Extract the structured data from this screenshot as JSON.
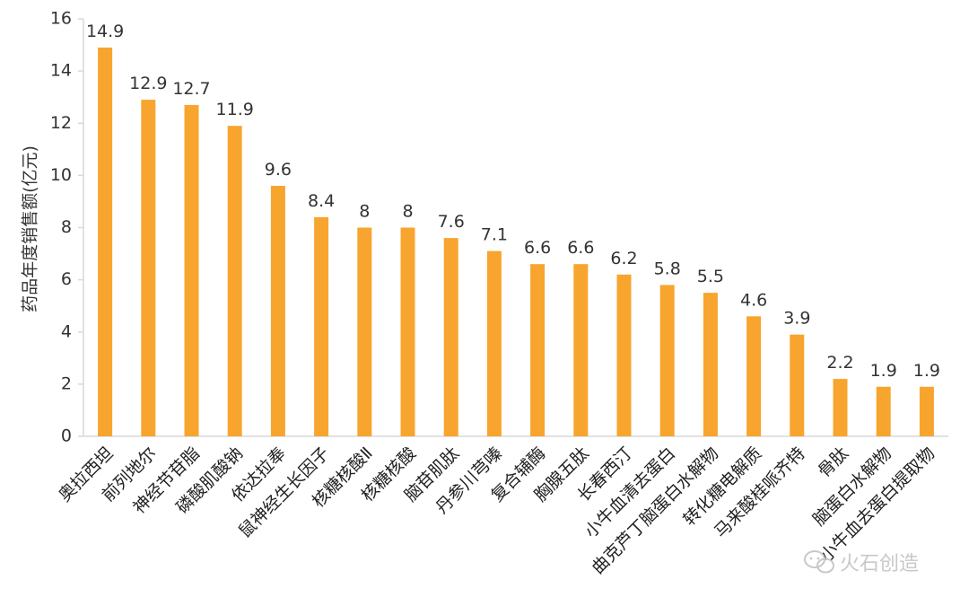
{
  "chart_data": {
    "type": "bar",
    "ylabel": "药品年度销售额(亿元)",
    "ylim": [
      0,
      16
    ],
    "yticks": [
      0,
      2,
      4,
      6,
      8,
      10,
      12,
      14,
      16
    ],
    "categories": [
      "奥拉西坦",
      "前列地尔",
      "神经节苷脂",
      "磷酸肌酸钠",
      "依达拉奉",
      "鼠神经生长因子",
      "核糖核酸Ⅱ",
      "核糖核酸",
      "脑苷肌肽",
      "丹参川芎嗪",
      "复合辅酶",
      "胸腺五肽",
      "长春西汀",
      "小牛血清去蛋白",
      "曲克芦丁脑蛋白水解物",
      "转化糖电解质",
      "马来酸桂哌齐特",
      "骨肽",
      "脑蛋白水解物",
      "小牛血去蛋白提取物"
    ],
    "values": [
      14.9,
      12.9,
      12.7,
      11.9,
      9.6,
      8.4,
      8,
      8,
      7.6,
      7.1,
      6.6,
      6.6,
      6.2,
      5.8,
      5.5,
      4.6,
      3.9,
      2.2,
      1.9,
      1.9
    ],
    "value_labels": [
      "14.9",
      "12.9",
      "12.7",
      "11.9",
      "9.6",
      "8.4",
      "8",
      "8",
      "7.6",
      "7.1",
      "6.6",
      "6.6",
      "6.2",
      "5.8",
      "5.5",
      "4.6",
      "3.9",
      "2.2",
      "1.9",
      "1.9"
    ],
    "bar_color": "#F7A52E",
    "grid": false,
    "legend": "none"
  },
  "watermark": {
    "icon": "wechat-icon",
    "text": "火石创造"
  }
}
